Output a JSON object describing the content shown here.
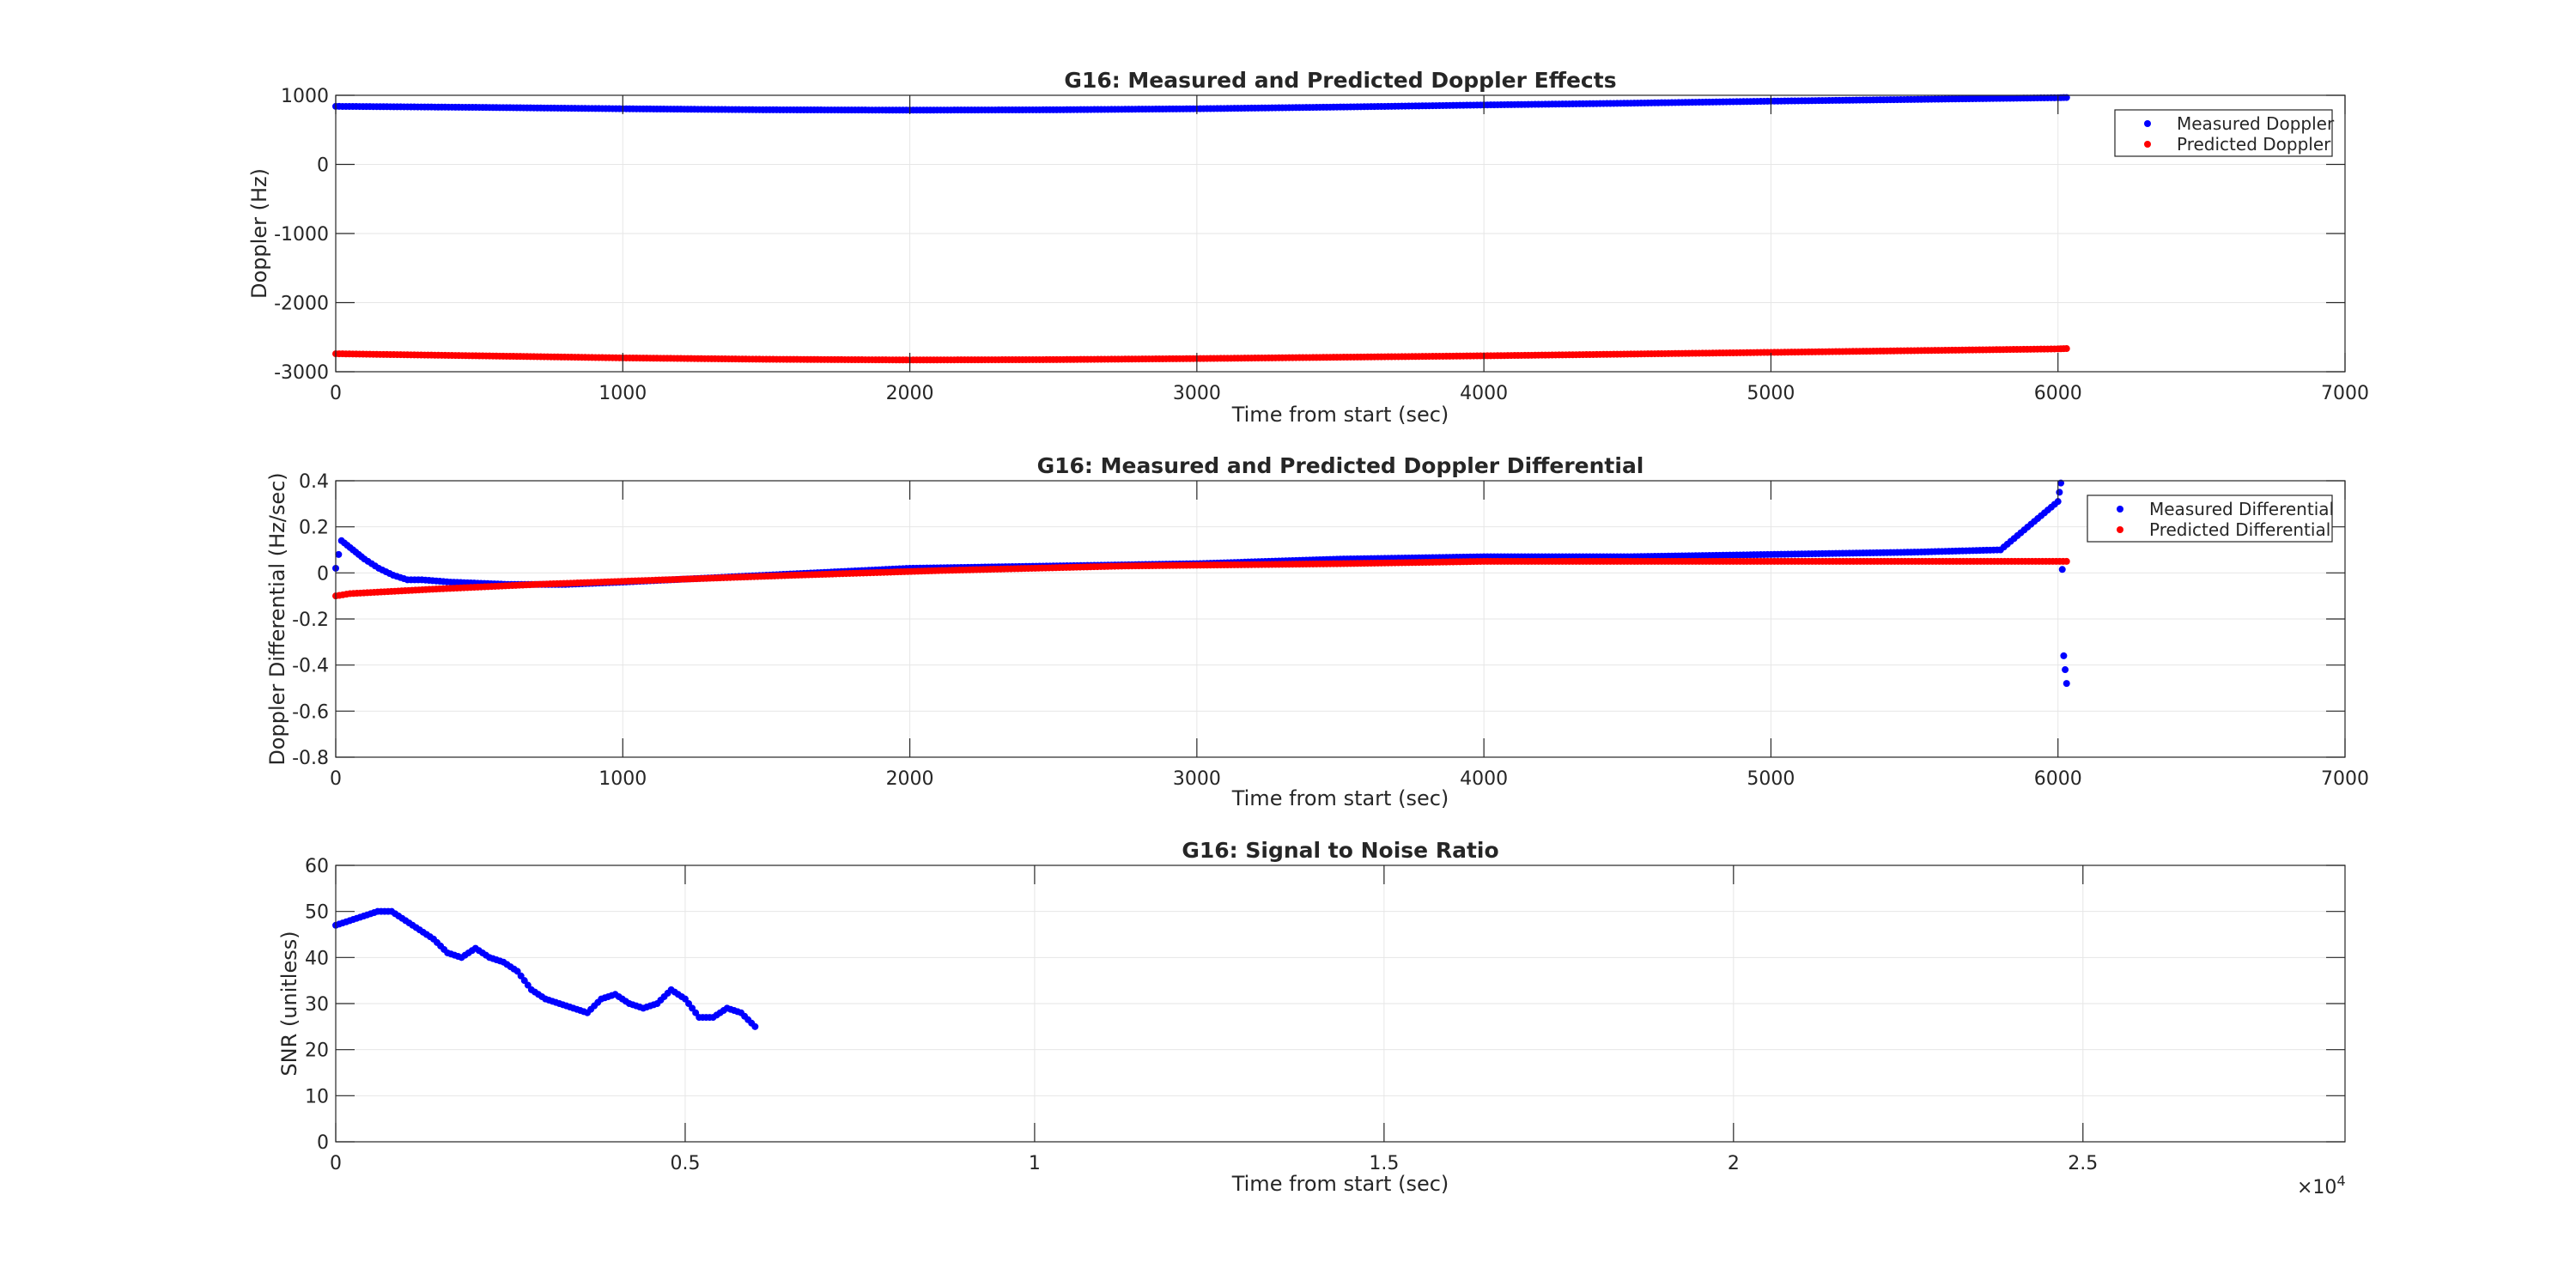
{
  "chart_data": [
    {
      "type": "scatter",
      "title": "G16: Measured and Predicted Doppler Effects",
      "xlabel": "Time from start (sec)",
      "ylabel": "Doppler (Hz)",
      "xlim": [
        0,
        7000
      ],
      "ylim": [
        -3000,
        1000
      ],
      "xticks": [
        0,
        1000,
        2000,
        3000,
        4000,
        5000,
        6000,
        7000
      ],
      "yticks": [
        -3000,
        -2000,
        -1000,
        0,
        1000
      ],
      "grid": true,
      "legend_position": "top-right",
      "series": [
        {
          "name": "Measured Doppler",
          "color": "#0000ff",
          "x": [
            0,
            500,
            1000,
            1500,
            2000,
            2500,
            3000,
            3500,
            4000,
            4500,
            5000,
            5500,
            6000,
            6030
          ],
          "y": [
            840,
            825,
            805,
            790,
            785,
            790,
            805,
            830,
            860,
            885,
            915,
            940,
            965,
            968
          ]
        },
        {
          "name": "Predicted Doppler",
          "color": "#ff0000",
          "x": [
            0,
            500,
            1000,
            1500,
            2000,
            2500,
            3000,
            3500,
            4000,
            4500,
            5000,
            5500,
            6000,
            6030
          ],
          "y": [
            -2740,
            -2770,
            -2800,
            -2820,
            -2830,
            -2825,
            -2810,
            -2790,
            -2770,
            -2745,
            -2720,
            -2695,
            -2670,
            -2665
          ]
        }
      ]
    },
    {
      "type": "scatter",
      "title": "G16: Measured and Predicted Doppler Differential",
      "xlabel": "Time from start (sec)",
      "ylabel": "Doppler Differential (Hz/sec)",
      "xlim": [
        0,
        7000
      ],
      "ylim": [
        -0.8,
        0.4
      ],
      "xticks": [
        0,
        1000,
        2000,
        3000,
        4000,
        5000,
        6000,
        7000
      ],
      "yticks": [
        -0.8,
        -0.6,
        -0.4,
        -0.2,
        0,
        0.2,
        0.4
      ],
      "grid": true,
      "legend_position": "top-right",
      "series": [
        {
          "name": "Measured Differential",
          "color": "#0000ff",
          "x": [
            0,
            20,
            40,
            60,
            80,
            100,
            150,
            200,
            250,
            300,
            400,
            600,
            800,
            1000,
            1500,
            2000,
            2500,
            3000,
            3500,
            4000,
            4500,
            5000,
            5500,
            5800,
            6000,
            6010,
            6020,
            6030
          ],
          "y": [
            0.02,
            0.14,
            0.12,
            0.1,
            0.08,
            0.06,
            0.02,
            -0.01,
            -0.03,
            -0.03,
            -0.04,
            -0.05,
            -0.05,
            -0.04,
            -0.01,
            0.02,
            0.03,
            0.04,
            0.06,
            0.07,
            0.07,
            0.08,
            0.09,
            0.1,
            0.31,
            0.39,
            -0.36,
            -0.48
          ]
        },
        {
          "name": "Predicted Differential",
          "color": "#ff0000",
          "x": [
            0,
            50,
            350,
            700,
            1150,
            1600,
            2100,
            2750,
            3500,
            4000,
            5000,
            6030
          ],
          "y": [
            -0.1,
            -0.09,
            -0.07,
            -0.05,
            -0.03,
            -0.01,
            0.01,
            0.03,
            0.04,
            0.05,
            0.05,
            0.05
          ]
        }
      ]
    },
    {
      "type": "scatter",
      "title": "G16: Signal to Noise Ratio",
      "xlabel": "Time from start (sec)",
      "ylabel": "SNR (unitless)",
      "xlim": [
        0,
        28750
      ],
      "ylim": [
        0,
        60
      ],
      "xticks": [
        0,
        5000,
        10000,
        15000,
        20000,
        25000
      ],
      "xticklabels": [
        "0",
        "0.5",
        "1",
        "1.5",
        "2",
        "2.5"
      ],
      "x_exponent_label": "×10",
      "x_exponent": "4",
      "yticks": [
        0,
        10,
        20,
        30,
        40,
        50,
        60
      ],
      "grid": true,
      "series": [
        {
          "color": "#0000ff",
          "x": [
            0,
            200,
            400,
            600,
            800,
            1000,
            1200,
            1400,
            1600,
            1800,
            2000,
            2200,
            2400,
            2600,
            2800,
            3000,
            3200,
            3400,
            3600,
            3800,
            4000,
            4200,
            4400,
            4600,
            4800,
            5000,
            5200,
            5400,
            5600,
            5800,
            6000
          ],
          "y": [
            47,
            48,
            49,
            50,
            50,
            48,
            46,
            44,
            41,
            40,
            42,
            40,
            39,
            37,
            33,
            31,
            30,
            29,
            28,
            31,
            32,
            30,
            29,
            30,
            33,
            31,
            27,
            27,
            29,
            28,
            25
          ]
        }
      ]
    }
  ]
}
